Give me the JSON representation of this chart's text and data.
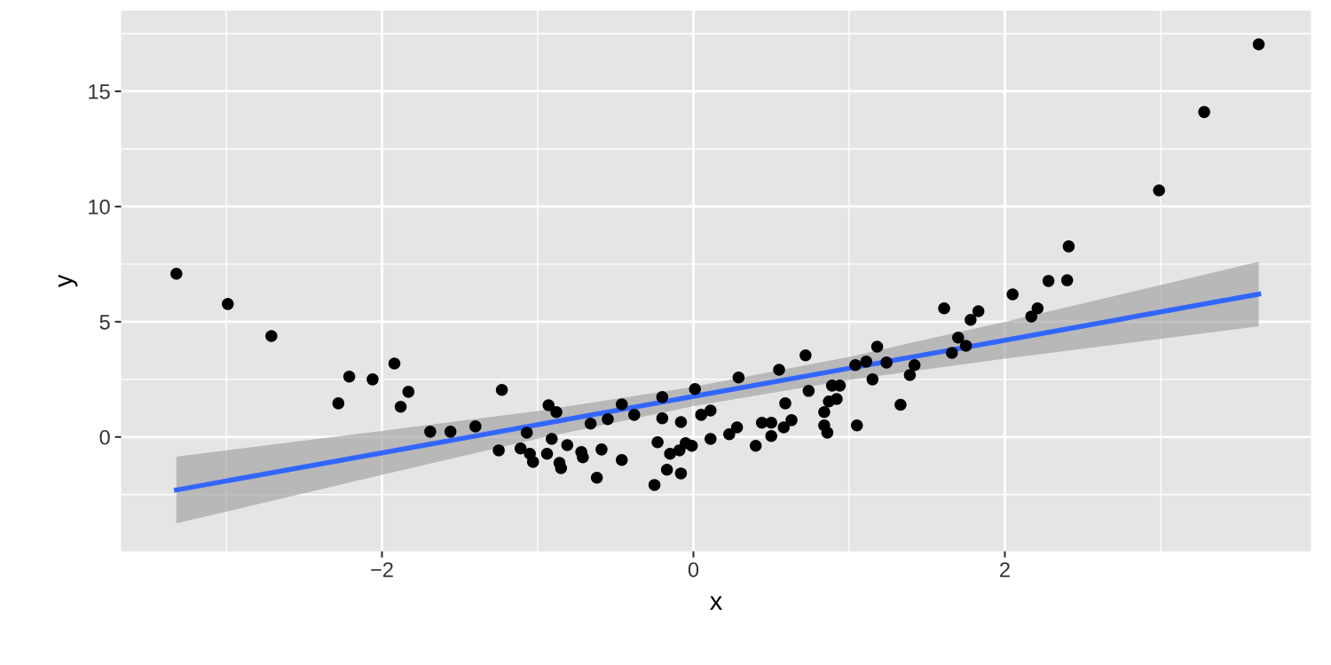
{
  "chart_data": {
    "type": "scatter",
    "xlabel": "x",
    "ylabel": "y",
    "xlim": [
      -3.675,
      3.966
    ],
    "ylim": [
      -4.96,
      18.5
    ],
    "xticks": [
      -2,
      0,
      2
    ],
    "yticks": [
      0,
      5,
      10,
      15
    ],
    "grid": true,
    "series": [
      {
        "color": "#000000",
        "marker": "circle",
        "x": [
          -3.32,
          -2.99,
          -2.71,
          -2.28,
          -2.21,
          -2.06,
          -1.92,
          -1.88,
          -1.83,
          -1.69,
          -1.56,
          -1.4,
          -1.25,
          -1.23,
          -1.11,
          -1.07,
          -1.05,
          -1.03,
          -0.94,
          -0.93,
          -0.91,
          -0.88,
          -0.86,
          -0.85,
          -0.81,
          -0.72,
          -0.71,
          -0.66,
          -0.62,
          -0.59,
          -0.55,
          -0.46,
          -0.46,
          -0.38,
          -0.25,
          -0.23,
          -0.2,
          -0.2,
          -0.17,
          -0.15,
          -0.08,
          -0.08,
          -0.09,
          -0.05,
          -0.01,
          0.01,
          0.05,
          0.11,
          0.11,
          0.23,
          0.28,
          0.29,
          0.4,
          0.44,
          0.5,
          0.5,
          0.55,
          0.59,
          0.58,
          0.63,
          0.72,
          0.74,
          0.84,
          0.84,
          0.86,
          0.89,
          0.92,
          0.87,
          0.94,
          1.04,
          1.05,
          1.11,
          1.18,
          1.24,
          1.15,
          1.33,
          1.39,
          1.42,
          1.61,
          1.66,
          1.7,
          1.75,
          1.78,
          1.83,
          2.05,
          2.17,
          2.21,
          2.28,
          2.4,
          2.41,
          2.99,
          3.28,
          3.63
        ],
        "values": [
          7.08,
          5.77,
          4.38,
          1.46,
          2.62,
          2.5,
          3.19,
          1.31,
          1.96,
          0.23,
          0.23,
          0.46,
          -0.58,
          2.04,
          -0.5,
          0.19,
          -0.73,
          -1.08,
          -0.73,
          1.38,
          -0.08,
          1.08,
          -1.12,
          -1.35,
          -0.35,
          -0.65,
          -0.88,
          0.58,
          -1.77,
          -0.54,
          0.77,
          1.42,
          -1.0,
          0.96,
          -2.08,
          -0.23,
          1.73,
          0.81,
          -1.42,
          -0.73,
          0.65,
          -1.58,
          -0.58,
          -0.27,
          -0.38,
          2.08,
          0.96,
          1.15,
          -0.08,
          0.12,
          0.42,
          2.58,
          -0.38,
          0.62,
          0.62,
          0.04,
          2.92,
          1.46,
          0.42,
          0.73,
          3.54,
          2.0,
          1.08,
          0.5,
          0.19,
          2.23,
          1.65,
          1.54,
          2.23,
          3.12,
          0.5,
          3.27,
          3.92,
          3.23,
          2.5,
          1.4,
          2.69,
          3.12,
          5.58,
          3.65,
          4.31,
          3.96,
          5.08,
          5.46,
          6.19,
          5.23,
          5.58,
          6.77,
          6.8,
          8.27,
          10.7,
          14.1,
          17.04
        ]
      },
      {
        "type": "line",
        "color": "#3366ff",
        "marker": "none",
        "x": [
          -3.32,
          -2,
          -1,
          0,
          1,
          2,
          3.63
        ],
        "values": [
          -2.3,
          -0.69,
          0.53,
          1.76,
          2.98,
          4.2,
          6.2
        ],
        "lower": [
          -3.75,
          -1.64,
          -0.07,
          1.34,
          2.48,
          3.4,
          4.8
        ],
        "upper": [
          -0.85,
          0.26,
          1.13,
          2.18,
          3.48,
          5.0,
          7.6
        ]
      }
    ]
  }
}
